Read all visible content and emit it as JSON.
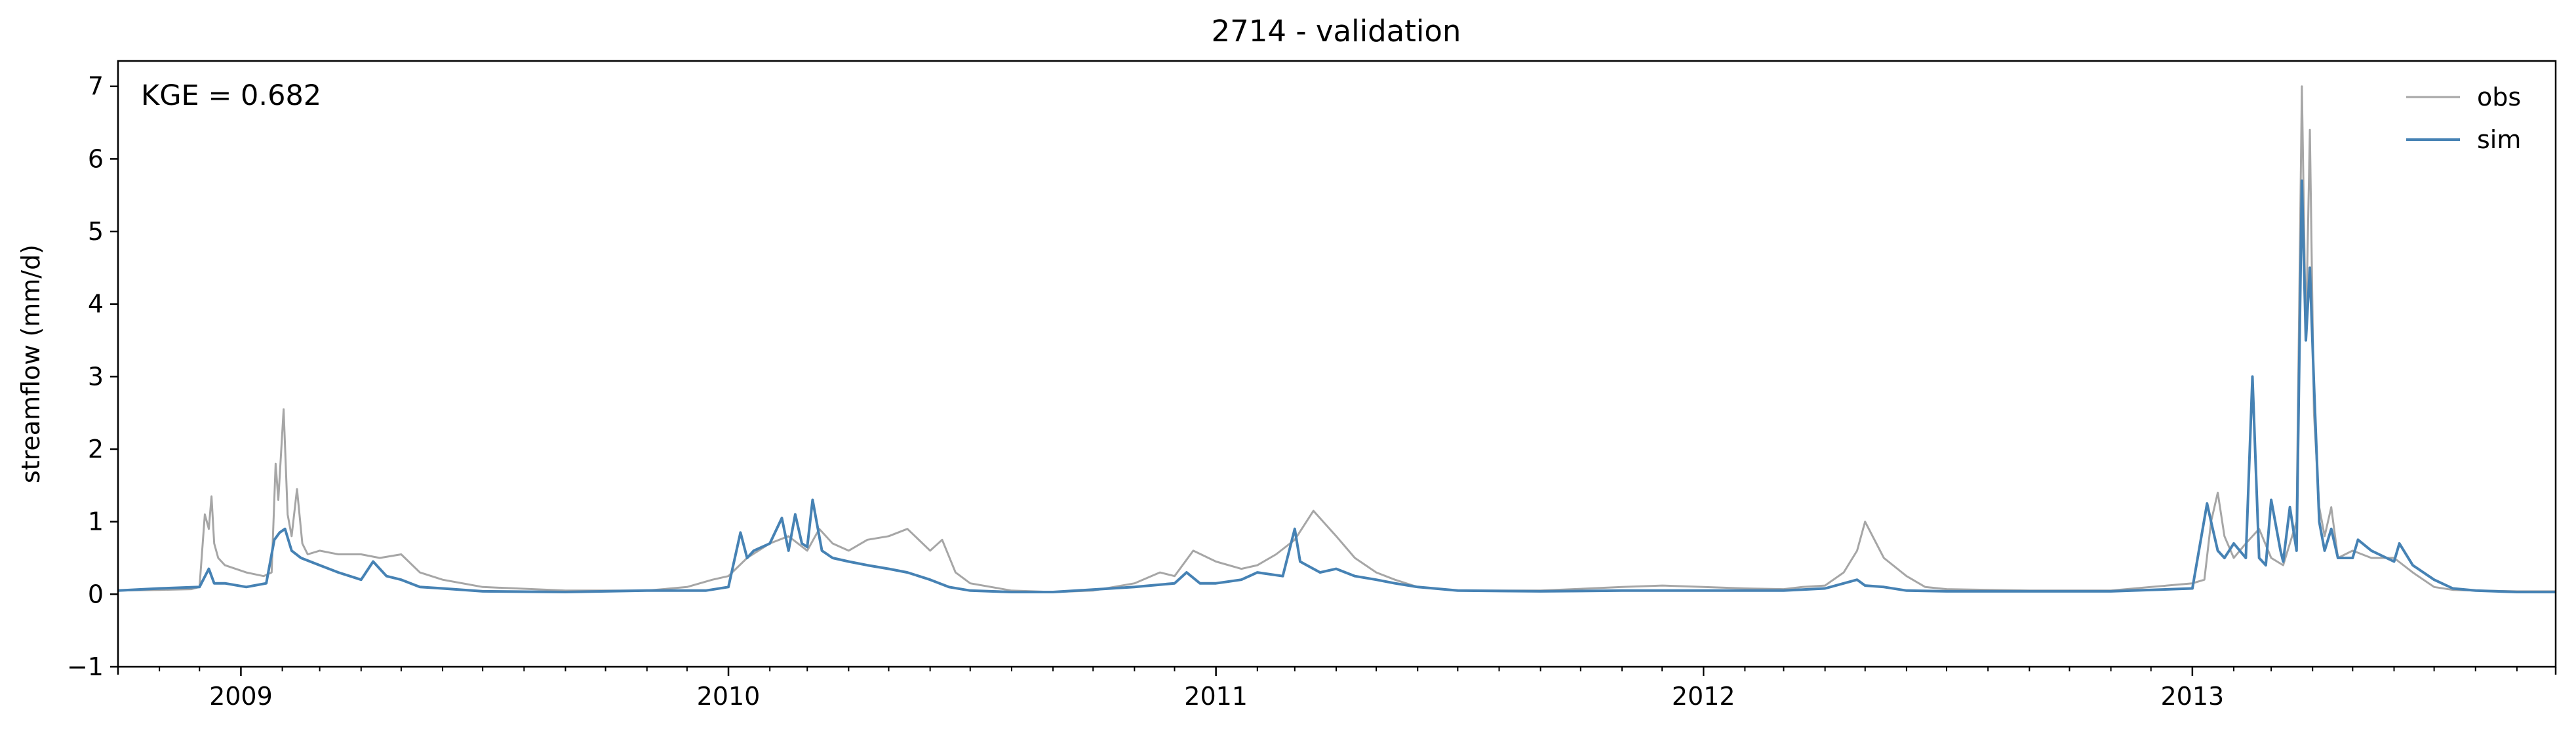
{
  "chart_data": {
    "type": "line",
    "title": "2714 - validation",
    "xlabel": "",
    "ylabel": "streamflow (mm/d)",
    "annotation": "KGE = 0.682",
    "xlim": [
      "2008-10-01",
      "2013-09-30"
    ],
    "ylim": [
      -1,
      7.35
    ],
    "yticks": [
      -1,
      0,
      1,
      2,
      3,
      4,
      5,
      6,
      7
    ],
    "xticks": [
      {
        "date": "2009-01-01",
        "label": "2009"
      },
      {
        "date": "2010-01-01",
        "label": "2010"
      },
      {
        "date": "2011-01-01",
        "label": "2011"
      },
      {
        "date": "2012-01-01",
        "label": "2012"
      },
      {
        "date": "2013-01-01",
        "label": "2013"
      }
    ],
    "minor_xticks": [
      "2008-11-01",
      "2008-12-01",
      "2009-02-01",
      "2009-03-01",
      "2009-04-01",
      "2009-05-01",
      "2009-06-01",
      "2009-07-01",
      "2009-08-01",
      "2009-09-01",
      "2009-10-01",
      "2009-11-01",
      "2009-12-01",
      "2010-02-01",
      "2010-03-01",
      "2010-04-01",
      "2010-05-01",
      "2010-06-01",
      "2010-07-01",
      "2010-08-01",
      "2010-09-01",
      "2010-10-01",
      "2010-11-01",
      "2010-12-01",
      "2011-02-01",
      "2011-03-01",
      "2011-04-01",
      "2011-05-01",
      "2011-06-01",
      "2011-07-01",
      "2011-08-01",
      "2011-09-01",
      "2011-10-01",
      "2011-11-01",
      "2011-12-01",
      "2012-02-01",
      "2012-03-01",
      "2012-04-01",
      "2012-05-01",
      "2012-06-01",
      "2012-07-01",
      "2012-08-01",
      "2012-09-01",
      "2012-10-01",
      "2012-11-01",
      "2012-12-01",
      "2013-02-01",
      "2013-03-01",
      "2013-04-01",
      "2013-05-01",
      "2013-06-01",
      "2013-07-01",
      "2013-08-01",
      "2013-09-01"
    ],
    "grid": false,
    "legend_position": "top-right",
    "series": [
      {
        "name": "obs",
        "color": "#a6a6a6",
        "x": [
          "2008-10-01",
          "2008-11-01",
          "2008-11-25",
          "2008-12-01",
          "2008-12-05",
          "2008-12-08",
          "2008-12-10",
          "2008-12-12",
          "2008-12-15",
          "2008-12-20",
          "2009-01-05",
          "2009-01-18",
          "2009-01-24",
          "2009-01-27",
          "2009-01-29",
          "2009-02-02",
          "2009-02-05",
          "2009-02-08",
          "2009-02-12",
          "2009-02-16",
          "2009-02-20",
          "2009-03-01",
          "2009-03-15",
          "2009-04-01",
          "2009-04-15",
          "2009-05-01",
          "2009-05-15",
          "2009-06-01",
          "2009-07-01",
          "2009-09-01",
          "2009-11-01",
          "2009-12-01",
          "2009-12-20",
          "2010-01-01",
          "2010-01-15",
          "2010-02-01",
          "2010-02-15",
          "2010-03-01",
          "2010-03-10",
          "2010-03-20",
          "2010-04-01",
          "2010-04-15",
          "2010-05-01",
          "2010-05-15",
          "2010-06-01",
          "2010-06-10",
          "2010-06-20",
          "2010-07-01",
          "2010-08-01",
          "2010-09-01",
          "2010-10-01",
          "2010-11-01",
          "2010-11-20",
          "2010-12-01",
          "2010-12-15",
          "2011-01-01",
          "2011-01-20",
          "2011-02-01",
          "2011-02-15",
          "2011-03-01",
          "2011-03-15",
          "2011-04-01",
          "2011-04-15",
          "2011-05-01",
          "2011-05-15",
          "2011-06-01",
          "2011-07-01",
          "2011-09-01",
          "2011-11-01",
          "2011-12-01",
          "2012-01-01",
          "2012-02-01",
          "2012-03-01",
          "2012-03-15",
          "2012-04-01",
          "2012-04-15",
          "2012-04-25",
          "2012-05-01",
          "2012-05-15",
          "2012-06-01",
          "2012-06-15",
          "2012-07-01",
          "2012-09-01",
          "2012-11-01",
          "2012-12-01",
          "2013-01-01",
          "2013-01-10",
          "2013-01-15",
          "2013-01-20",
          "2013-01-25",
          "2013-02-01",
          "2013-02-10",
          "2013-02-20",
          "2013-03-01",
          "2013-03-10",
          "2013-03-20",
          "2013-03-24",
          "2013-03-27",
          "2013-03-30",
          "2013-04-02",
          "2013-04-06",
          "2013-04-10",
          "2013-04-15",
          "2013-04-20",
          "2013-05-01",
          "2013-05-15",
          "2013-06-01",
          "2013-06-15",
          "2013-07-01",
          "2013-07-15",
          "2013-08-01",
          "2013-09-01",
          "2013-09-30"
        ],
        "values": [
          0.05,
          0.06,
          0.07,
          0.1,
          1.1,
          0.9,
          1.35,
          0.7,
          0.5,
          0.4,
          0.3,
          0.25,
          0.3,
          1.8,
          1.3,
          2.55,
          1.1,
          0.8,
          1.45,
          0.7,
          0.55,
          0.6,
          0.55,
          0.55,
          0.5,
          0.55,
          0.3,
          0.2,
          0.1,
          0.05,
          0.05,
          0.1,
          0.2,
          0.25,
          0.5,
          0.7,
          0.8,
          0.6,
          0.9,
          0.7,
          0.6,
          0.75,
          0.8,
          0.9,
          0.6,
          0.75,
          0.3,
          0.15,
          0.05,
          0.03,
          0.05,
          0.15,
          0.3,
          0.25,
          0.6,
          0.45,
          0.35,
          0.4,
          0.55,
          0.75,
          1.15,
          0.8,
          0.5,
          0.3,
          0.2,
          0.1,
          0.05,
          0.05,
          0.1,
          0.12,
          0.1,
          0.08,
          0.07,
          0.1,
          0.12,
          0.3,
          0.6,
          1.0,
          0.5,
          0.25,
          0.1,
          0.07,
          0.05,
          0.05,
          0.1,
          0.15,
          0.2,
          1.0,
          1.4,
          0.8,
          0.5,
          0.7,
          0.9,
          0.5,
          0.4,
          1.0,
          7.0,
          3.5,
          6.4,
          2.5,
          1.2,
          0.8,
          1.2,
          0.5,
          0.6,
          0.5,
          0.5,
          0.3,
          0.1,
          0.06,
          0.05,
          0.04,
          0.04
        ]
      },
      {
        "name": "sim",
        "color": "#4682b4",
        "x": [
          "2008-10-01",
          "2008-11-01",
          "2008-12-01",
          "2008-12-08",
          "2008-12-12",
          "2008-12-20",
          "2009-01-05",
          "2009-01-20",
          "2009-01-26",
          "2009-01-30",
          "2009-02-03",
          "2009-02-08",
          "2009-02-15",
          "2009-03-01",
          "2009-03-15",
          "2009-04-01",
          "2009-04-10",
          "2009-04-20",
          "2009-05-01",
          "2009-05-15",
          "2009-06-01",
          "2009-07-01",
          "2009-09-01",
          "2009-11-01",
          "2009-12-15",
          "2010-01-01",
          "2010-01-10",
          "2010-01-15",
          "2010-01-20",
          "2010-02-01",
          "2010-02-10",
          "2010-02-15",
          "2010-02-20",
          "2010-02-25",
          "2010-03-01",
          "2010-03-05",
          "2010-03-12",
          "2010-03-20",
          "2010-04-01",
          "2010-04-15",
          "2010-05-01",
          "2010-05-15",
          "2010-06-01",
          "2010-06-15",
          "2010-07-01",
          "2010-08-01",
          "2010-09-01",
          "2010-11-01",
          "2010-12-01",
          "2010-12-10",
          "2010-12-20",
          "2011-01-01",
          "2011-01-20",
          "2011-02-01",
          "2011-02-20",
          "2011-03-01",
          "2011-03-05",
          "2011-03-10",
          "2011-03-20",
          "2011-04-01",
          "2011-04-15",
          "2011-05-01",
          "2011-05-15",
          "2011-06-01",
          "2011-07-01",
          "2011-09-01",
          "2011-11-01",
          "2012-01-01",
          "2012-03-01",
          "2012-04-01",
          "2012-04-25",
          "2012-05-01",
          "2012-05-15",
          "2012-06-01",
          "2012-07-01",
          "2012-09-01",
          "2012-11-01",
          "2013-01-01",
          "2013-01-12",
          "2013-01-15",
          "2013-01-20",
          "2013-01-25",
          "2013-02-01",
          "2013-02-10",
          "2013-02-15",
          "2013-02-20",
          "2013-02-25",
          "2013-03-01",
          "2013-03-08",
          "2013-03-10",
          "2013-03-15",
          "2013-03-20",
          "2013-03-24",
          "2013-03-27",
          "2013-03-30",
          "2013-04-02",
          "2013-04-06",
          "2013-04-10",
          "2013-04-15",
          "2013-04-20",
          "2013-05-01",
          "2013-05-05",
          "2013-05-15",
          "2013-06-01",
          "2013-06-05",
          "2013-06-15",
          "2013-07-01",
          "2013-07-15",
          "2013-08-01",
          "2013-09-01",
          "2013-09-30"
        ],
        "values": [
          0.05,
          0.08,
          0.1,
          0.35,
          0.15,
          0.15,
          0.1,
          0.15,
          0.75,
          0.85,
          0.9,
          0.6,
          0.5,
          0.4,
          0.3,
          0.2,
          0.45,
          0.25,
          0.2,
          0.1,
          0.08,
          0.04,
          0.03,
          0.05,
          0.05,
          0.1,
          0.85,
          0.5,
          0.6,
          0.7,
          1.05,
          0.6,
          1.1,
          0.7,
          0.65,
          1.3,
          0.6,
          0.5,
          0.45,
          0.4,
          0.35,
          0.3,
          0.2,
          0.1,
          0.05,
          0.03,
          0.03,
          0.1,
          0.15,
          0.3,
          0.15,
          0.15,
          0.2,
          0.3,
          0.25,
          0.9,
          0.45,
          0.4,
          0.3,
          0.35,
          0.25,
          0.2,
          0.15,
          0.1,
          0.05,
          0.04,
          0.05,
          0.05,
          0.05,
          0.08,
          0.2,
          0.12,
          0.1,
          0.05,
          0.04,
          0.04,
          0.04,
          0.08,
          1.25,
          1.0,
          0.6,
          0.5,
          0.7,
          0.5,
          3.0,
          0.5,
          0.4,
          1.3,
          0.6,
          0.45,
          1.2,
          0.6,
          5.7,
          3.5,
          4.5,
          2.9,
          1.0,
          0.6,
          0.9,
          0.5,
          0.5,
          0.75,
          0.6,
          0.45,
          0.7,
          0.4,
          0.2,
          0.08,
          0.05,
          0.03,
          0.03
        ]
      }
    ]
  }
}
